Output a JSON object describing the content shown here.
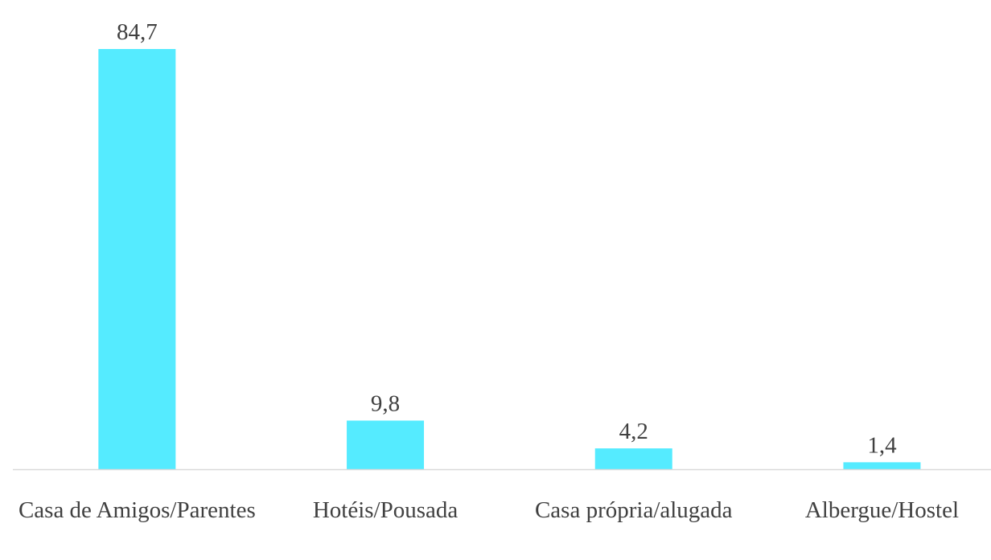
{
  "chart_data": {
    "type": "bar",
    "categories": [
      "Casa de Amigos/Parentes",
      "Hotéis/Pousada",
      "Casa própria/alugada",
      "Albergue/Hostel"
    ],
    "values": [
      84.7,
      9.8,
      4.2,
      1.4
    ],
    "value_labels": [
      "84,7",
      "9,8",
      "4,2",
      "1,4"
    ],
    "color": "#55ebff"
  }
}
